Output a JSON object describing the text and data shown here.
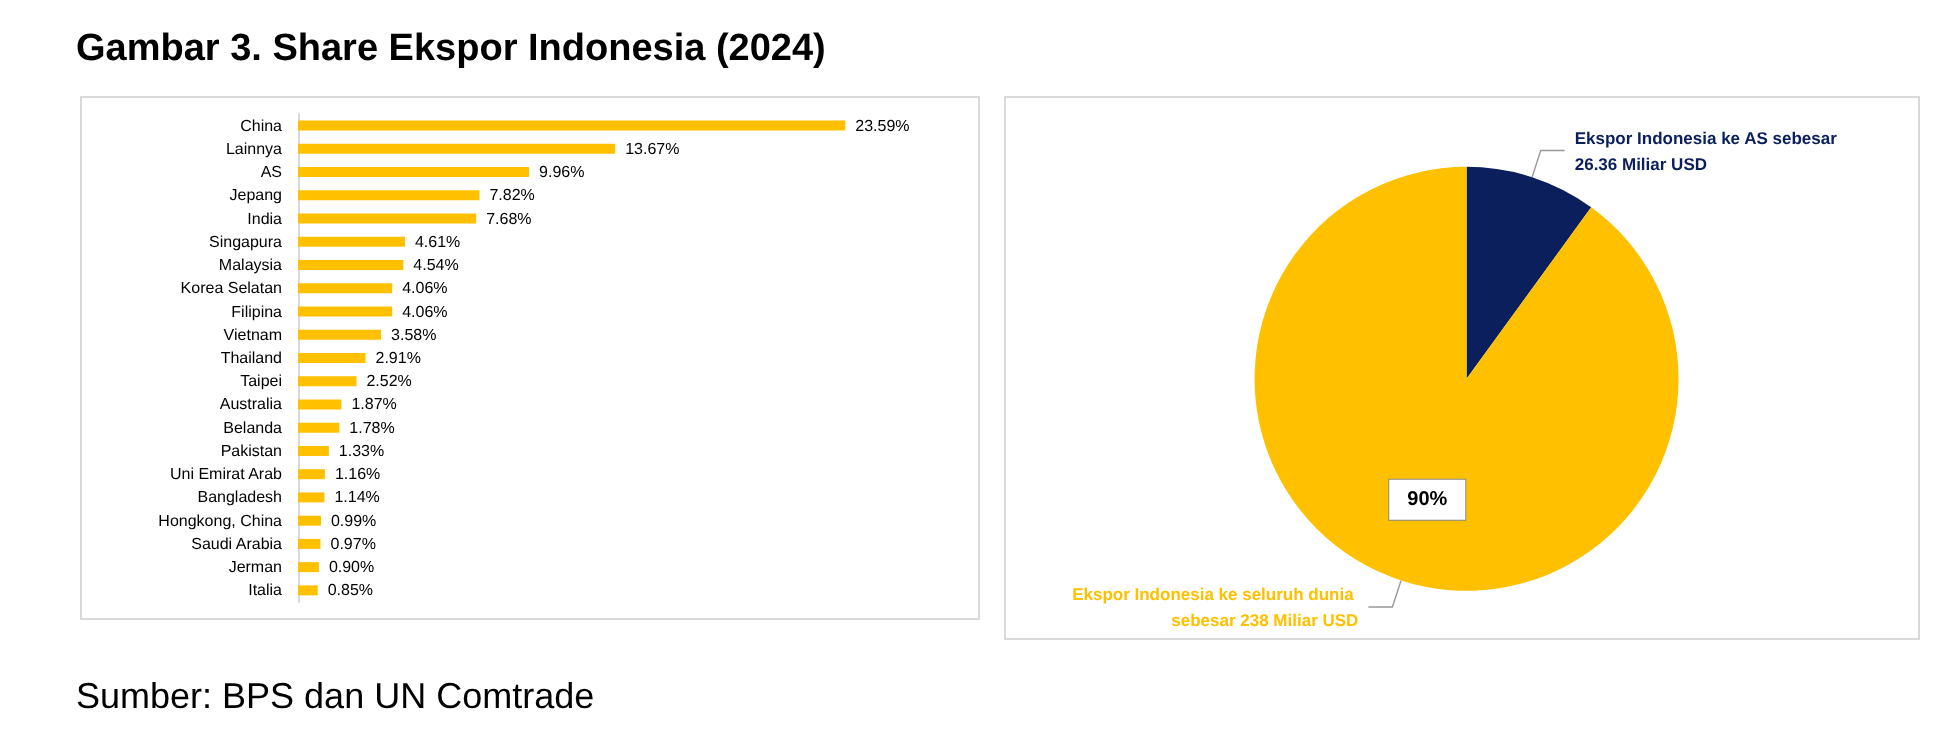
{
  "chart_data": [
    {
      "type": "bar",
      "title": "Gambar 3. Share Ekspor Indonesia (2024)",
      "orientation": "horizontal",
      "tick_labels": "y",
      "color": "#ffc000",
      "categories": [
        "China",
        "Lainnya",
        "AS",
        "Jepang",
        "India",
        "Singapura",
        "Malaysia",
        "Korea Selatan",
        "Filipina",
        "Vietnam",
        "Thailand",
        "Taipei",
        "Australia",
        "Belanda",
        "Pakistan",
        "Uni Emirat Arab",
        "Bangladesh",
        "Hongkong, China",
        "Saudi Arabia",
        "Jerman",
        "Italia"
      ],
      "values": [
        23.59,
        13.67,
        9.96,
        7.82,
        7.68,
        4.61,
        4.54,
        4.06,
        4.06,
        3.58,
        2.91,
        2.52,
        1.87,
        1.78,
        1.33,
        1.16,
        1.14,
        0.99,
        0.97,
        0.9,
        0.85
      ],
      "value_labels": [
        "23.59%",
        "13.67%",
        "9.96%",
        "7.82%",
        "7.68%",
        "4.61%",
        "4.54%",
        "4.06%",
        "4.06%",
        "3.58%",
        "2.91%",
        "2.52%",
        "1.87%",
        "1.78%",
        "1.33%",
        "1.16%",
        "1.14%",
        "0.99%",
        "0.97%",
        "0.90%",
        "0.85%"
      ],
      "annotations": [
        "Sumber: BPS dan UN Comtrade"
      ]
    },
    {
      "type": "pie",
      "categories": [
        "Ekspor Indonesia ke AS sebesar 26.36 Miliar USD",
        "Ekspor Indonesia ke seluruh dunia sebesar 238 Miliar USD"
      ],
      "values": [
        10,
        90
      ],
      "colors": [
        "#0a1f5c",
        "#ffc000"
      ],
      "value_labels": [
        null,
        "90%"
      ]
    }
  ]
}
